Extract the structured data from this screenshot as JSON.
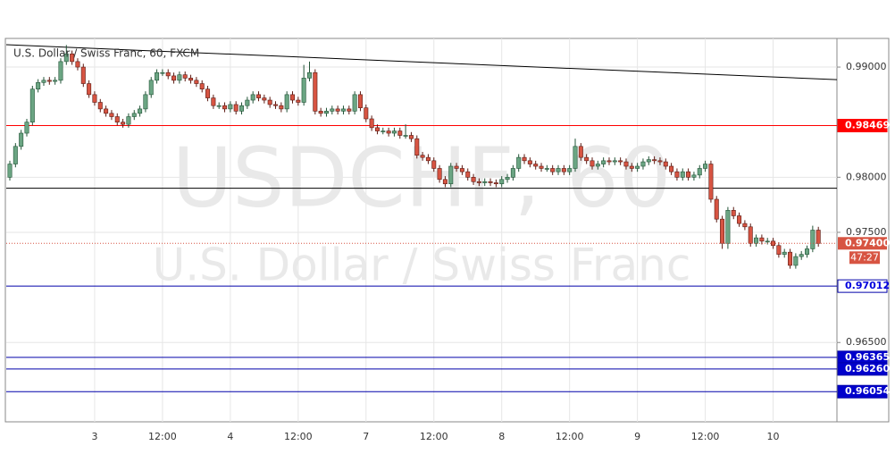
{
  "chart_data": {
    "type": "candlestick",
    "title": "U.S. Dollar / Swiss Franc, 60, FXCM",
    "watermark": "USDCHF, 60",
    "watermark_subtitle": "U.S. Dollar / Swiss Franc",
    "categories": [
      null,
      null,
      null,
      null,
      null,
      null,
      null,
      null,
      null,
      null,
      null,
      null,
      null,
      null,
      null,
      "3",
      null,
      null,
      null,
      null,
      null,
      null,
      null,
      null,
      null,
      null,
      null,
      "12:00",
      null,
      null,
      null,
      null,
      null,
      null,
      null,
      null,
      null,
      null,
      null,
      "4",
      null,
      null,
      null,
      null,
      null,
      null,
      null,
      null,
      null,
      null,
      null,
      "12:00",
      null,
      null,
      null,
      null,
      null,
      null,
      null,
      null,
      null,
      null,
      null,
      "7",
      null,
      null,
      null,
      null,
      null,
      null,
      null,
      null,
      null,
      null,
      null,
      "12:00",
      null,
      null,
      null,
      null,
      null,
      null,
      null,
      null,
      null,
      null,
      null,
      "8",
      null,
      null,
      null,
      null,
      null,
      null,
      null,
      null,
      null,
      null,
      null,
      "12:00",
      null,
      null,
      null,
      null,
      null,
      null,
      null,
      null,
      null,
      null,
      null,
      "9",
      null,
      null,
      null,
      null,
      null,
      null,
      null,
      null,
      null,
      null,
      null,
      "12:00",
      null,
      null,
      null,
      null,
      null,
      null,
      null,
      null,
      null,
      null,
      null,
      "10",
      null,
      null,
      null,
      null,
      null,
      null,
      null,
      null
    ],
    "open": [
      0.98,
      0.9812,
      0.9828,
      0.984,
      0.985,
      0.988,
      0.9886,
      0.9888,
      0.9887,
      0.9888,
      0.9905,
      0.9912,
      0.9905,
      0.99,
      0.9885,
      0.9875,
      0.9868,
      0.9862,
      0.9858,
      0.9855,
      0.985,
      0.9848,
      0.9855,
      0.9858,
      0.9862,
      0.9875,
      0.9888,
      0.9895,
      0.9895,
      0.9892,
      0.9888,
      0.9893,
      0.989,
      0.9888,
      0.9885,
      0.988,
      0.9872,
      0.9865,
      0.9865,
      0.9862,
      0.9866,
      0.986,
      0.9865,
      0.987,
      0.9875,
      0.9872,
      0.987,
      0.9866,
      0.9865,
      0.9862,
      0.9875,
      0.987,
      0.9868,
      0.989,
      0.9895,
      0.986,
      0.9858,
      0.986,
      0.9862,
      0.986,
      0.9862,
      0.986,
      0.9875,
      0.9863,
      0.9853,
      0.9845,
      0.9842,
      0.9842,
      0.984,
      0.9842,
      0.9838,
      0.9838,
      0.9835,
      0.982,
      0.9818,
      0.9815,
      0.9808,
      0.9798,
      0.9794,
      0.981,
      0.9808,
      0.9805,
      0.98,
      0.9796,
      0.9795,
      0.9796,
      0.9795,
      0.9794,
      0.9798,
      0.98,
      0.9808,
      0.9818,
      0.9815,
      0.9812,
      0.981,
      0.9808,
      0.9808,
      0.9805,
      0.9808,
      0.9805,
      0.9808,
      0.9828,
      0.9818,
      0.9815,
      0.981,
      0.9812,
      0.9815,
      0.9814,
      0.9815,
      0.9814,
      0.981,
      0.9808,
      0.981,
      0.9814,
      0.9816,
      0.9815,
      0.9814,
      0.981,
      0.9805,
      0.98,
      0.9805,
      0.98,
      0.9802,
      0.9808,
      0.9812,
      0.978,
      0.9762,
      0.974,
      0.977,
      0.9765,
      0.9758,
      0.9755,
      0.974,
      0.9745,
      0.9742,
      0.9742,
      0.9738,
      0.973,
      0.9732,
      0.972,
      0.9728,
      0.973,
      0.9735,
      0.9752
    ],
    "high": [
      0.9815,
      0.9831,
      0.9843,
      0.9853,
      0.9883,
      0.9889,
      0.9891,
      0.9891,
      0.9891,
      0.9908,
      0.992,
      0.9915,
      0.9908,
      0.9903,
      0.9888,
      0.9878,
      0.9871,
      0.9865,
      0.9861,
      0.9858,
      0.9853,
      0.9858,
      0.9861,
      0.9865,
      0.9878,
      0.9891,
      0.9898,
      0.9898,
      0.9898,
      0.9895,
      0.9896,
      0.9896,
      0.9893,
      0.9891,
      0.9888,
      0.9883,
      0.9875,
      0.9868,
      0.9868,
      0.9869,
      0.9869,
      0.9868,
      0.9873,
      0.9878,
      0.9878,
      0.9875,
      0.9873,
      0.9869,
      0.9868,
      0.9878,
      0.9878,
      0.9873,
      0.9902,
      0.9905,
      0.9898,
      0.9863,
      0.9863,
      0.9865,
      0.9865,
      0.9865,
      0.9865,
      0.9878,
      0.9878,
      0.9866,
      0.9856,
      0.9848,
      0.9845,
      0.9845,
      0.9845,
      0.9845,
      0.9848,
      0.9841,
      0.9838,
      0.9823,
      0.9821,
      0.9818,
      0.9811,
      0.9801,
      0.9813,
      0.9813,
      0.9811,
      0.9808,
      0.9803,
      0.9799,
      0.9799,
      0.9799,
      0.9798,
      0.9801,
      0.9803,
      0.9811,
      0.9821,
      0.9821,
      0.9818,
      0.9815,
      0.9813,
      0.9811,
      0.9811,
      0.9811,
      0.9811,
      0.9811,
      0.9835,
      0.9831,
      0.9821,
      0.9818,
      0.9815,
      0.9818,
      0.9818,
      0.9818,
      0.9818,
      0.9817,
      0.9813,
      0.9813,
      0.9817,
      0.9819,
      0.9819,
      0.9818,
      0.9817,
      0.9813,
      0.9808,
      0.9808,
      0.9808,
      0.9805,
      0.9811,
      0.9815,
      0.9815,
      0.9783,
      0.9765,
      0.9773,
      0.9773,
      0.9768,
      0.9761,
      0.9758,
      0.9748,
      0.9748,
      0.9745,
      0.9745,
      0.9741,
      0.9735,
      0.9735,
      0.9731,
      0.9733,
      0.9738,
      0.9756,
      0.9755
    ],
    "low": [
      0.9797,
      0.9809,
      0.9825,
      0.9837,
      0.9847,
      0.9877,
      0.9883,
      0.9884,
      0.9884,
      0.9885,
      0.9902,
      0.9902,
      0.9897,
      0.9882,
      0.9872,
      0.9865,
      0.9859,
      0.9855,
      0.9852,
      0.9847,
      0.9845,
      0.9845,
      0.9852,
      0.9855,
      0.9859,
      0.9872,
      0.9885,
      0.9892,
      0.9889,
      0.9885,
      0.9885,
      0.9887,
      0.9885,
      0.9882,
      0.9877,
      0.9869,
      0.9862,
      0.9862,
      0.9859,
      0.9859,
      0.9857,
      0.9857,
      0.9862,
      0.9867,
      0.9869,
      0.9867,
      0.9863,
      0.9862,
      0.9859,
      0.9859,
      0.9867,
      0.9865,
      0.9865,
      0.9887,
      0.9857,
      0.9855,
      0.9855,
      0.9857,
      0.9857,
      0.9857,
      0.9857,
      0.9857,
      0.986,
      0.985,
      0.9842,
      0.9839,
      0.9839,
      0.9837,
      0.9837,
      0.9835,
      0.9835,
      0.9832,
      0.9817,
      0.9815,
      0.9812,
      0.9805,
      0.9795,
      0.9791,
      0.9791,
      0.9805,
      0.9802,
      0.9797,
      0.9793,
      0.9792,
      0.9792,
      0.9792,
      0.9791,
      0.9791,
      0.9795,
      0.9797,
      0.9805,
      0.9812,
      0.9809,
      0.9807,
      0.9805,
      0.9805,
      0.9802,
      0.9802,
      0.9802,
      0.9802,
      0.9805,
      0.9815,
      0.9812,
      0.9807,
      0.9807,
      0.9809,
      0.9811,
      0.9811,
      0.9811,
      0.9807,
      0.9805,
      0.9805,
      0.9807,
      0.9811,
      0.9812,
      0.9811,
      0.9807,
      0.9802,
      0.9797,
      0.9797,
      0.9797,
      0.9797,
      0.9799,
      0.9805,
      0.9777,
      0.9759,
      0.9735,
      0.9735,
      0.9762,
      0.9755,
      0.9752,
      0.9737,
      0.9737,
      0.9739,
      0.9739,
      0.9735,
      0.9727,
      0.9727,
      0.9717,
      0.9717,
      0.9725,
      0.9727,
      0.9732,
      0.9737
    ],
    "close": [
      0.9812,
      0.9828,
      0.984,
      0.985,
      0.988,
      0.9886,
      0.9888,
      0.9887,
      0.9888,
      0.9905,
      0.9912,
      0.9905,
      0.99,
      0.9885,
      0.9875,
      0.9868,
      0.9862,
      0.9858,
      0.9855,
      0.985,
      0.9848,
      0.9855,
      0.9858,
      0.9862,
      0.9875,
      0.9888,
      0.9895,
      0.9895,
      0.9892,
      0.9888,
      0.9893,
      0.989,
      0.9888,
      0.9885,
      0.988,
      0.9872,
      0.9865,
      0.9865,
      0.9862,
      0.9866,
      0.986,
      0.9865,
      0.987,
      0.9875,
      0.9872,
      0.987,
      0.9866,
      0.9865,
      0.9862,
      0.9875,
      0.987,
      0.9868,
      0.989,
      0.9895,
      0.986,
      0.9858,
      0.986,
      0.9862,
      0.986,
      0.9862,
      0.986,
      0.9875,
      0.9863,
      0.9853,
      0.9845,
      0.9842,
      0.9842,
      0.984,
      0.9842,
      0.9838,
      0.9838,
      0.9835,
      0.982,
      0.9818,
      0.9815,
      0.9808,
      0.9798,
      0.9794,
      0.981,
      0.9808,
      0.9805,
      0.98,
      0.9796,
      0.9795,
      0.9796,
      0.9795,
      0.9794,
      0.9798,
      0.98,
      0.9808,
      0.9818,
      0.9815,
      0.9812,
      0.981,
      0.9808,
      0.9808,
      0.9805,
      0.9808,
      0.9805,
      0.9808,
      0.9828,
      0.9818,
      0.9815,
      0.981,
      0.9812,
      0.9815,
      0.9814,
      0.9815,
      0.9814,
      0.981,
      0.9808,
      0.981,
      0.9814,
      0.9816,
      0.9815,
      0.9814,
      0.981,
      0.9805,
      0.98,
      0.9805,
      0.98,
      0.9802,
      0.9808,
      0.9812,
      0.978,
      0.9762,
      0.974,
      0.977,
      0.9765,
      0.9758,
      0.9755,
      0.974,
      0.9745,
      0.9742,
      0.9742,
      0.9738,
      0.973,
      0.9732,
      0.972,
      0.9728,
      0.973,
      0.9735,
      0.9752,
      0.974
    ],
    "up_color": "#6ba583",
    "down_color": "#d75442",
    "ylim": [
      0.9578,
      0.9926
    ],
    "yticks": [
      {
        "value": 0.99,
        "label": "0.99000"
      },
      {
        "value": 0.98,
        "label": "0.98000"
      },
      {
        "value": 0.975,
        "label": "0.97500"
      },
      {
        "value": 0.965,
        "label": "0.96500"
      }
    ],
    "grid": true,
    "horizontal_lines": [
      {
        "value": 0.98469,
        "label": "0.98469",
        "color": "#ff0000",
        "fill": "#ff0000",
        "text_color": "#ffffff"
      },
      {
        "value": 0.979,
        "color": "#000000"
      },
      {
        "value": 0.97012,
        "label": "0.97012",
        "color": "#0000aa",
        "fill": "#ffffff",
        "text_color": "#0000dd"
      },
      {
        "value": 0.96365,
        "label": "0.96365",
        "color": "#0000aa",
        "fill": "#0000cc",
        "text_color": "#ffffff"
      },
      {
        "value": 0.9626,
        "label": "0.96260",
        "color": "#0000aa",
        "fill": "#0000cc",
        "text_color": "#ffffff"
      },
      {
        "value": 0.96054,
        "label": "0.96054",
        "color": "#0000aa",
        "fill": "#0000cc",
        "text_color": "#ffffff"
      }
    ],
    "trend_line": {
      "start": 0.99203,
      "end": 0.98886,
      "color": "#000000"
    },
    "last_price": {
      "value": 0.974,
      "label": "0.97400",
      "countdown": "47:27",
      "color": "#d75442"
    }
  }
}
